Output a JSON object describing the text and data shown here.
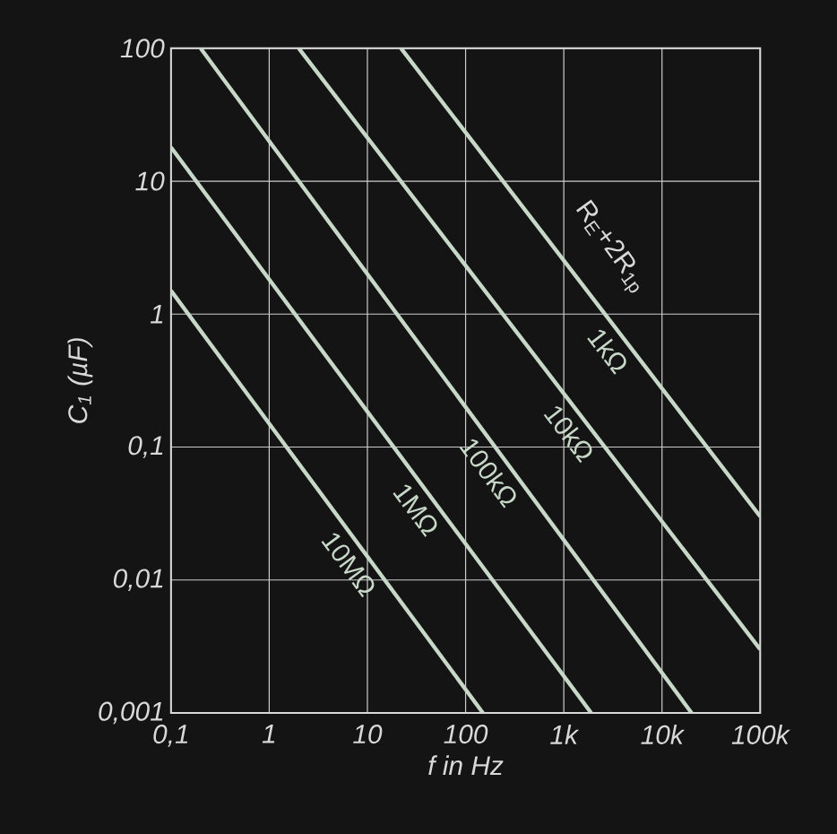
{
  "chart_data": {
    "type": "line",
    "xlabel": "f in Hz",
    "ylabel": "C$_{1}$ (µF)",
    "log": "xy",
    "grid": true,
    "legend": false,
    "marker": "none",
    "line_style": "solid",
    "xlim": [
      0.1,
      100000
    ],
    "ylim": [
      0.001,
      100
    ],
    "xticks": [
      {
        "value": 0.1,
        "label": "0,1"
      },
      1,
      10,
      100,
      {
        "value": 1000,
        "label": "1k"
      },
      {
        "value": 10000,
        "label": "10k"
      },
      {
        "value": 100000,
        "label": "100k"
      }
    ],
    "yticks": [
      {
        "value": 0.001,
        "label": "0,001"
      },
      {
        "value": 0.01,
        "label": "0,01"
      },
      {
        "value": 0.1,
        "label": "0,1"
      },
      1,
      10,
      100
    ],
    "series": [
      {
        "name": "10MΩ",
        "color": "#c8d8c8",
        "x": [
          0.1,
          150
        ],
        "values": [
          1.5,
          0.001
        ]
      },
      {
        "name": "1MΩ",
        "color": "#c8d8c8",
        "x": [
          0.1,
          1900
        ],
        "values": [
          18,
          0.001
        ]
      },
      {
        "name": "100kΩ",
        "color": "#c8d8c8",
        "x": [
          0.2,
          20000
        ],
        "values": [
          100,
          0.001
        ]
      },
      {
        "name": "10kΩ",
        "color": "#c8d8c8",
        "x": [
          2,
          100000
        ],
        "values": [
          100,
          0.003
        ]
      },
      {
        "name": "1kΩ",
        "color": "#c8d8c8",
        "x": [
          22,
          100000
        ],
        "values": [
          100,
          0.03
        ]
      }
    ],
    "annotations": [
      "R$_{E}$+2R$_{1p}$"
    ]
  }
}
